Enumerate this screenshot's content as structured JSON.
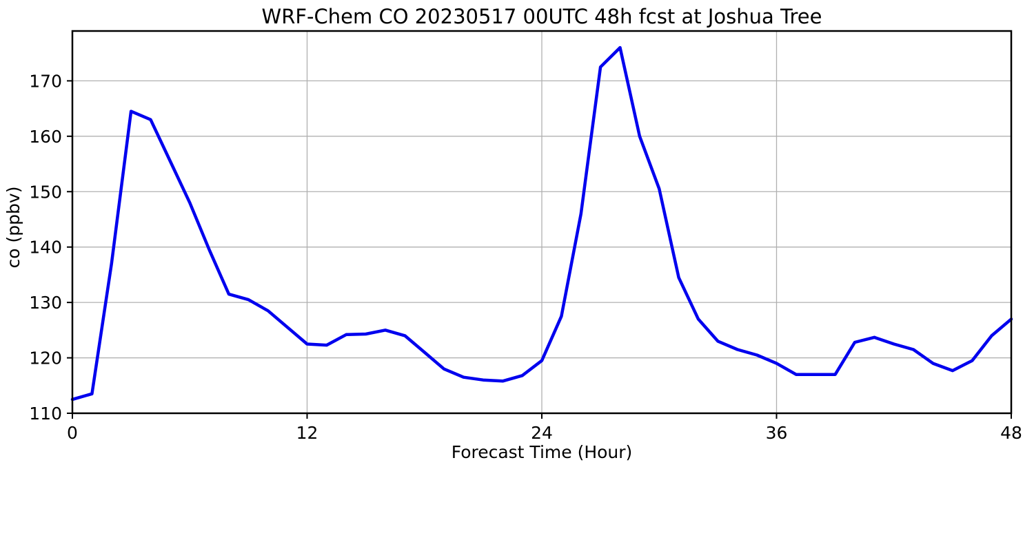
{
  "chart_data": {
    "type": "line",
    "title": "WRF-Chem CO  20230517 00UTC 48h fcst at Joshua Tree",
    "xlabel": "Forecast Time (Hour)",
    "ylabel": "co (ppbv)",
    "series_name": "co",
    "x": [
      0,
      1,
      2,
      3,
      4,
      5,
      6,
      7,
      8,
      9,
      10,
      11,
      12,
      13,
      14,
      15,
      16,
      17,
      18,
      19,
      20,
      21,
      22,
      23,
      24,
      25,
      26,
      27,
      28,
      29,
      30,
      31,
      32,
      33,
      34,
      35,
      36,
      37,
      38,
      39,
      40,
      41,
      42,
      43,
      44,
      45,
      46,
      47,
      48
    ],
    "values": [
      112.5,
      113.5,
      137,
      164.5,
      163,
      155.5,
      148,
      139.5,
      131.5,
      130.5,
      128.5,
      125.5,
      122.5,
      122.3,
      124.2,
      124.3,
      125,
      124,
      121,
      118,
      116.5,
      116,
      115.8,
      116.8,
      119.5,
      127.5,
      146,
      172.5,
      176,
      160,
      150.5,
      134.5,
      127,
      123,
      121.5,
      120.5,
      119,
      117,
      117,
      117,
      122.8,
      123.7,
      122.5,
      121.5,
      119,
      117.7,
      119.5,
      124,
      127
    ],
    "xlim": [
      0,
      48
    ],
    "ylim": [
      110,
      179
    ],
    "xticks": [
      0,
      12,
      24,
      36,
      48
    ],
    "yticks": [
      110,
      120,
      130,
      140,
      150,
      160,
      170
    ],
    "grid": true,
    "legend": "none",
    "line_color": "#0000ee",
    "line_width": 4.5,
    "grid_color": "#b0b0b0",
    "axis_color": "#000000"
  }
}
